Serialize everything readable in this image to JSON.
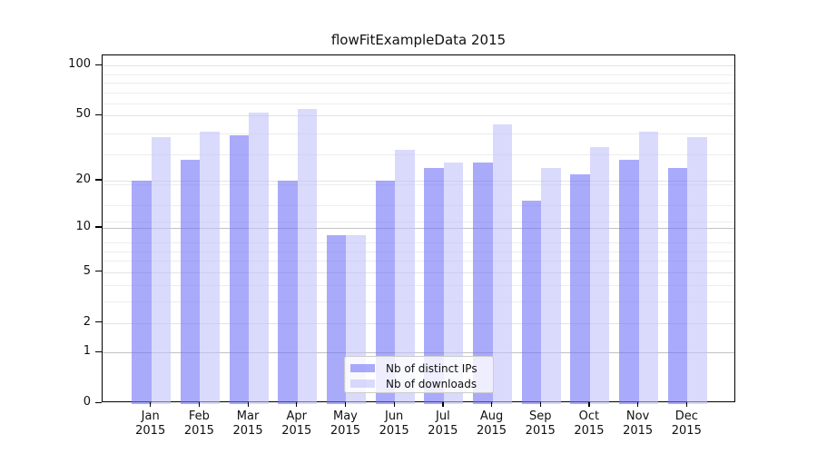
{
  "figure": {
    "background": "#ffffff"
  },
  "chart_data": {
    "type": "bar",
    "title": "flowFitExampleData 2015",
    "categories": [
      "Jan 2015",
      "Feb 2015",
      "Mar 2015",
      "Apr 2015",
      "May 2015",
      "Jun 2015",
      "Jul 2015",
      "Aug 2015",
      "Sep 2015",
      "Oct 2015",
      "Nov 2015",
      "Dec 2015"
    ],
    "x_tick_month": [
      "Jan",
      "Feb",
      "Mar",
      "Apr",
      "May",
      "Jun",
      "Jul",
      "Aug",
      "Sep",
      "Oct",
      "Nov",
      "Dec"
    ],
    "x_tick_year": "2015",
    "series": [
      {
        "name": "Nb of distinct IPs",
        "color_fill": "rgba(113,113,248,0.6)",
        "color_hex": "#aaaafb",
        "values": [
          20,
          27,
          38,
          20,
          9,
          20,
          24,
          26,
          15,
          22,
          27,
          24
        ]
      },
      {
        "name": "Nb of downloads",
        "color_fill": "rgba(193,193,250,0.6)",
        "color_hex": "#dadafc",
        "values": [
          37,
          40,
          52,
          55,
          9,
          31,
          26,
          44,
          24,
          32,
          40,
          37
        ]
      }
    ],
    "y_axis": {
      "scale": "log1p",
      "tick_labels": [
        "100",
        "50",
        "20",
        "10",
        "5",
        "2",
        "1",
        "0"
      ],
      "tick_values": [
        100,
        50,
        20,
        10,
        5,
        2,
        1,
        0
      ],
      "ylim": [
        0,
        114
      ]
    },
    "x_axis": {
      "label": ""
    },
    "legend": {
      "position": "bottom-center-inside",
      "entries": [
        "Nb of distinct IPs",
        "Nb of downloads"
      ]
    },
    "grid": true
  }
}
